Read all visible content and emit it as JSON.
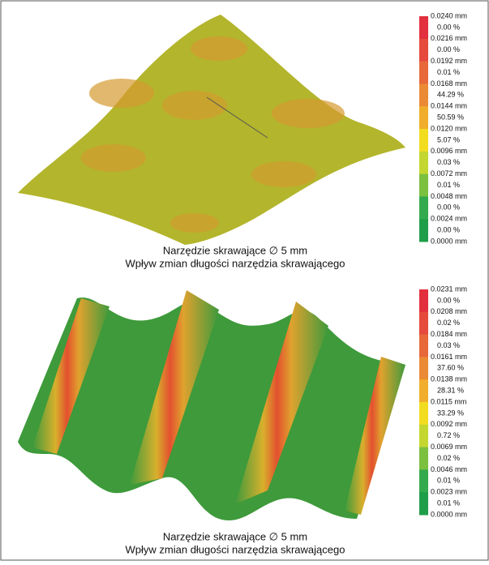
{
  "panels": [
    {
      "legend": {
        "levels": [
          "0.0240 mm",
          "0.0216 mm",
          "0.0192 mm",
          "0.0168 mm",
          "0.0144 mm",
          "0.0120 mm",
          "0.0096 mm",
          "0.0072 mm",
          "0.0048 mm",
          "0.0024 mm",
          "0.0000 mm"
        ],
        "percents": [
          "0.00 %",
          "0.00 %",
          "0.01 %",
          "44.29 %",
          "50.59 %",
          "5.07 %",
          "0.03 %",
          "0.01 %",
          "0.00 %",
          "0.00 %"
        ],
        "colors": [
          "#e2303c",
          "#e54a3c",
          "#e8683a",
          "#eb8a34",
          "#f0ae2c",
          "#f2dc20",
          "#c4d630",
          "#7cc040",
          "#34aa4e",
          "#1f9e4a"
        ]
      },
      "caption": [
        "Narzędzie skrawające ∅ 5 mm",
        "Wpływ zmian długości narzędzia skrawającego"
      ]
    },
    {
      "legend": {
        "levels": [
          "0.0231 mm",
          "0.0208 mm",
          "0.0184 mm",
          "0.0161 mm",
          "0.0138 mm",
          "0.0115 mm",
          "0.0092 mm",
          "0.0069 mm",
          "0.0046 mm",
          "0.0023 mm",
          "0.0000 mm"
        ],
        "percents": [
          "0.00 %",
          "0.02 %",
          "0.03 %",
          "37.60 %",
          "28.31 %",
          "33.29 %",
          "0.72 %",
          "0.02 %",
          "0.01 %",
          "0.01 %"
        ],
        "colors": [
          "#e2303c",
          "#e54a3c",
          "#e8683a",
          "#eb8a34",
          "#f0ae2c",
          "#f2dc20",
          "#c4d630",
          "#7cc040",
          "#34aa4e",
          "#1f9e4a"
        ]
      },
      "caption": [
        "Narzędzie skrawające ∅ 5 mm",
        "Wpływ zmian długości narzędzia skrawającego"
      ]
    }
  ]
}
